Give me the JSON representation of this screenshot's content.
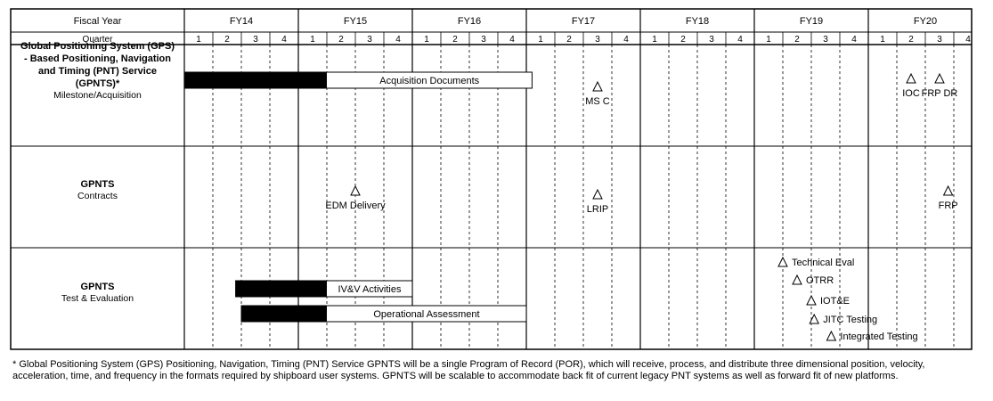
{
  "header": {
    "fiscal_year_label": "Fiscal Year",
    "quarter_label": "Quarter",
    "fiscal_years": [
      "FY14",
      "FY15",
      "FY16",
      "FY17",
      "FY18",
      "FY19",
      "FY20"
    ],
    "quarters": [
      "1",
      "2",
      "3",
      "4"
    ]
  },
  "rows": [
    {
      "title_lines": [
        "Global Positioning System (GPS)",
        "- Based Positioning, Navigation",
        "and Timing (PNT) Service",
        "(GPNTS)*"
      ],
      "subtitle": "Milestone/Acquisition",
      "bars": [
        {
          "label": "Acquisition Documents",
          "start_q": 0,
          "solid_end_q": 5,
          "end_q": 12.2
        }
      ],
      "milestones": [
        {
          "label": "MS  C",
          "q": 14.5,
          "label_pos": "below"
        },
        {
          "label": "IOC",
          "q": 25.5,
          "label_pos": "below"
        },
        {
          "label": "FRP  DR",
          "q": 26.5,
          "label_pos": "below"
        }
      ]
    },
    {
      "title_lines": [
        "GPNTS"
      ],
      "subtitle": "Contracts",
      "bars": [],
      "milestones": [
        {
          "label": "EDM  Delivery",
          "q": 6.0,
          "label_pos": "below"
        },
        {
          "label": "LRIP",
          "q": 14.5,
          "label_pos": "below"
        },
        {
          "label": "FRP",
          "q": 26.8,
          "label_pos": "below"
        }
      ]
    },
    {
      "title_lines": [
        "GPNTS"
      ],
      "subtitle": "Test & Evaluation",
      "bars": [
        {
          "label": "IV&V Activities",
          "start_q": 1.8,
          "solid_end_q": 5,
          "end_q": 8
        },
        {
          "label": "Operational Assessment",
          "start_q": 2.0,
          "solid_end_q": 5,
          "end_q": 12
        }
      ],
      "milestones": [
        {
          "label": "Technical Eval",
          "q": 21.0,
          "label_pos": "right"
        },
        {
          "label": "OTRR",
          "q": 21.5,
          "label_pos": "right"
        },
        {
          "label": "IOT&E",
          "q": 22.0,
          "label_pos": "right"
        },
        {
          "label": "JITC  Testing",
          "q": 22.1,
          "label_pos": "right"
        },
        {
          "label": "Integrated Testing",
          "q": 22.7,
          "label_pos": "right"
        }
      ]
    }
  ],
  "footnote": "* Global Positioning System (GPS) Positioning, Navigation, Timing (PNT) Service GPNTS will be a single Program of Record (POR), which will receive, process, and distribute three dimensional position, velocity, acceleration, time, and frequency in the formats required by shipboard user systems. GPNTS will be scalable to accommodate back fit of current legacy PNT systems as well as forward fit of new platforms."
}
